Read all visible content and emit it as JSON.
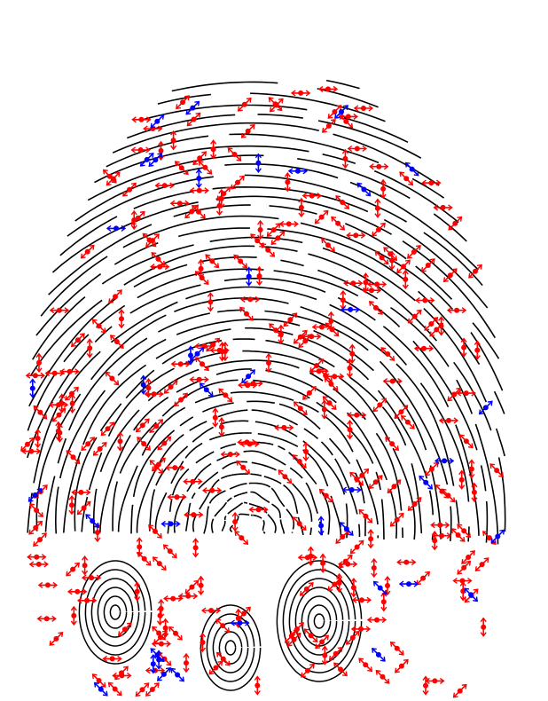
{
  "image": {
    "subject": "fingerprint-ridge-skeleton",
    "background_color": "#ffffff",
    "ridge_color": "#000000",
    "markers": {
      "ridge_ending_color": "#ff0000",
      "bifurcation_color": "#0000ff",
      "marker_style": "double-arrow",
      "approx_red_count": 320,
      "approx_blue_count": 40
    }
  }
}
